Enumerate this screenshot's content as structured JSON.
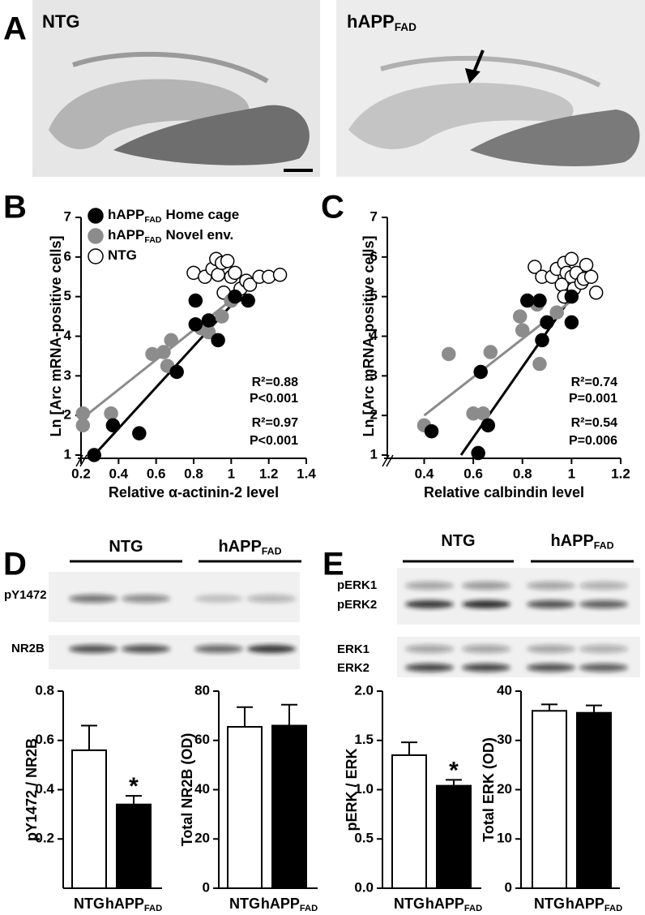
{
  "panel_labels": [
    "A",
    "B",
    "C",
    "D",
    "E"
  ],
  "images": [
    {
      "main": "NTG"
    },
    {
      "main": "hAPP",
      "sub": "FAD"
    }
  ],
  "blots": [
    {
      "groups": [
        {
          "main": "NTG"
        },
        {
          "main": "hAPP",
          "sub": "FAD"
        }
      ],
      "rows": [
        "pY1472",
        "NR2B"
      ]
    },
    {
      "groups": [
        {
          "main": "NTG"
        },
        {
          "main": "hAPP",
          "sub": "FAD"
        }
      ],
      "rows": [
        "pERK1",
        "pERK2",
        "ERK1",
        "ERK2"
      ]
    }
  ],
  "chart_data": [
    {
      "type": "scatter",
      "xlabel": "Relative α-actinin-2 level",
      "ylabel": "Ln [Arc mRNA-positive cells]",
      "xlim": [
        0.2,
        1.4
      ],
      "ylim": [
        1,
        7
      ],
      "xticks": [
        0.2,
        0.4,
        0.6,
        0.8,
        1.0,
        1.2,
        1.4
      ],
      "yticks": [
        1,
        2,
        3,
        4,
        5,
        6,
        7
      ],
      "legend": true,
      "series": [
        {
          "name": {
            "main": "hAPP",
            "sub": "FAD",
            "rest": "Home cage"
          },
          "color": "#000000",
          "edge": "#000000",
          "x": [
            0.27,
            0.37,
            0.51,
            0.71,
            0.81,
            0.81,
            0.88,
            0.93,
            1.02,
            1.09
          ],
          "values": [
            1.0,
            1.75,
            1.55,
            3.1,
            4.9,
            4.3,
            4.4,
            3.9,
            5.0,
            4.9
          ]
        },
        {
          "name": {
            "main": "hAPP",
            "sub": "FAD",
            "rest": "Novel env."
          },
          "color": "#8c8c8c",
          "edge": "#8c8c8c",
          "x": [
            0.21,
            0.21,
            0.36,
            0.58,
            0.64,
            0.66,
            0.68,
            0.84,
            0.88,
            0.95,
            1.0
          ],
          "values": [
            2.05,
            1.75,
            2.05,
            3.55,
            3.6,
            3.25,
            3.9,
            4.2,
            4.1,
            4.5,
            4.9
          ]
        },
        {
          "name": {
            "main": "NTG"
          },
          "color": "#ffffff",
          "edge": "#000000",
          "x": [
            0.8,
            0.86,
            0.9,
            0.92,
            0.93,
            0.95,
            0.96,
            0.98,
            1.0,
            1.0,
            1.02,
            1.04,
            1.05,
            1.08,
            1.1,
            1.15,
            1.2,
            1.26
          ],
          "values": [
            5.6,
            5.5,
            5.7,
            5.95,
            5.55,
            5.85,
            5.1,
            5.9,
            5.5,
            4.9,
            5.6,
            5.05,
            5.2,
            5.4,
            5.3,
            5.5,
            5.5,
            5.55
          ]
        }
      ],
      "fits": [
        {
          "color": "#000000",
          "x": [
            0.27,
            1.1
          ],
          "values": [
            1.0,
            5.3
          ]
        },
        {
          "color": "#8c8c8c",
          "x": [
            0.2,
            1.05
          ],
          "values": [
            1.9,
            5.1
          ]
        }
      ],
      "annotations": [
        {
          "text": "R²=0.88",
          "color": "#000000"
        },
        {
          "text": "P<0.001",
          "color": "#000000"
        },
        {
          "text": "R²=0.97",
          "color": "#8c8c8c"
        },
        {
          "text": "P<0.001",
          "color": "#8c8c8c"
        }
      ]
    },
    {
      "type": "scatter",
      "xlabel": "Relative calbindin level",
      "ylabel": "Ln [Arc mRNA-positive cells]",
      "xlim": [
        0.25,
        1.2
      ],
      "ylim": [
        1,
        7
      ],
      "xticks": [
        0.4,
        0.6,
        0.8,
        1.0,
        1.2
      ],
      "yticks": [
        1,
        2,
        3,
        4,
        5,
        6,
        7
      ],
      "legend": false,
      "series": [
        {
          "color": "#000000",
          "edge": "#000000",
          "x": [
            0.43,
            0.62,
            0.63,
            0.66,
            0.82,
            0.87,
            0.88,
            0.9,
            1.0,
            1.0
          ],
          "values": [
            1.6,
            1.05,
            3.1,
            1.75,
            4.9,
            4.9,
            3.9,
            4.35,
            4.35,
            5.0
          ]
        },
        {
          "color": "#8c8c8c",
          "edge": "#8c8c8c",
          "x": [
            0.4,
            0.5,
            0.6,
            0.64,
            0.67,
            0.79,
            0.8,
            0.86,
            0.87,
            0.94
          ],
          "values": [
            1.75,
            3.55,
            2.05,
            2.05,
            3.6,
            4.5,
            4.15,
            4.8,
            3.3,
            4.6
          ]
        },
        {
          "color": "#ffffff",
          "edge": "#000000",
          "x": [
            0.85,
            0.88,
            0.92,
            0.94,
            0.96,
            0.97,
            0.97,
            0.98,
            1.0,
            1.0,
            1.01,
            1.02,
            1.04,
            1.05,
            1.06,
            1.08,
            1.1
          ],
          "values": [
            5.75,
            5.5,
            5.5,
            5.7,
            5.3,
            5.85,
            5.0,
            5.6,
            5.95,
            5.5,
            5.2,
            5.6,
            5.35,
            5.45,
            5.8,
            5.5,
            5.1
          ]
        }
      ],
      "fits": [
        {
          "color": "#000000",
          "x": [
            0.55,
            1.0
          ],
          "values": [
            1.0,
            5.0
          ]
        },
        {
          "color": "#8c8c8c",
          "x": [
            0.4,
            1.0
          ],
          "values": [
            2.0,
            4.9
          ]
        }
      ],
      "annotations": [
        {
          "text": "R²=0.74",
          "color": "#000000"
        },
        {
          "text": "P=0.001",
          "color": "#000000"
        },
        {
          "text": "R²=0.54",
          "color": "#8c8c8c"
        },
        {
          "text": "P=0.006",
          "color": "#8c8c8c"
        }
      ]
    },
    {
      "type": "bar",
      "ylabel": "pY1472 / NR2B",
      "categories": [
        {
          "main": "NTG"
        },
        {
          "main": "hAPP",
          "sub": "FAD"
        }
      ],
      "values": [
        0.56,
        0.34
      ],
      "errors": [
        0.1,
        0.035
      ],
      "colors": [
        "#ffffff",
        "#000000"
      ],
      "ylim": [
        0,
        0.8
      ],
      "yticks": [
        0.2,
        0.4,
        0.6,
        0.8
      ],
      "star": {
        "text": "*",
        "index": 1
      }
    },
    {
      "type": "bar",
      "ylabel": "Total NR2B (OD)",
      "categories": [
        {
          "main": "NTG"
        },
        {
          "main": "hAPP",
          "sub": "FAD"
        }
      ],
      "values": [
        65.5,
        66
      ],
      "errors": [
        8,
        8.5
      ],
      "colors": [
        "#ffffff",
        "#000000"
      ],
      "ylim": [
        0,
        80
      ],
      "yticks": [
        0,
        20,
        40,
        60,
        80
      ]
    },
    {
      "type": "bar",
      "ylabel": "pERK / ERK",
      "categories": [
        {
          "main": "NTG"
        },
        {
          "main": "hAPP",
          "sub": "FAD"
        }
      ],
      "values": [
        1.35,
        1.04
      ],
      "errors": [
        0.13,
        0.06
      ],
      "colors": [
        "#ffffff",
        "#000000"
      ],
      "ylim": [
        0,
        2.0
      ],
      "yticks": [
        {
          "value": 0,
          "label": "0.0"
        },
        0.5,
        {
          "value": 1,
          "label": "1.0"
        },
        1.5,
        {
          "value": 2,
          "label": "2.0"
        }
      ],
      "star": {
        "text": "*",
        "index": 1
      }
    },
    {
      "type": "bar",
      "ylabel": "Total ERK (OD)",
      "categories": [
        {
          "main": "NTG"
        },
        {
          "main": "hAPP",
          "sub": "FAD"
        }
      ],
      "values": [
        36,
        35.6
      ],
      "errors": [
        1.3,
        1.5
      ],
      "colors": [
        "#ffffff",
        "#000000"
      ],
      "ylim": [
        0,
        40
      ],
      "yticks": [
        0,
        10,
        20,
        30,
        40
      ]
    }
  ]
}
